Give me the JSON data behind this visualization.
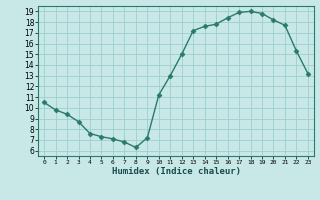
{
  "x": [
    0,
    1,
    2,
    3,
    4,
    5,
    6,
    7,
    8,
    9,
    10,
    11,
    12,
    13,
    14,
    15,
    16,
    17,
    18,
    19,
    20,
    21,
    22,
    23
  ],
  "y": [
    10.5,
    9.8,
    9.4,
    8.7,
    7.6,
    7.3,
    7.1,
    6.8,
    6.3,
    7.2,
    11.2,
    13.0,
    15.0,
    17.2,
    17.6,
    17.8,
    18.4,
    18.9,
    19.0,
    18.8,
    18.2,
    17.7,
    15.3,
    13.2
  ],
  "line_color": "#2a7a6a",
  "marker": "D",
  "marker_size": 2.5,
  "bg_color": "#c8e8e8",
  "grid_color": "#9ecece",
  "xlabel": "Humidex (Indice chaleur)",
  "xlim": [
    -0.5,
    23.5
  ],
  "ylim": [
    5.5,
    19.5
  ],
  "yticks": [
    6,
    7,
    8,
    9,
    10,
    11,
    12,
    13,
    14,
    15,
    16,
    17,
    18,
    19
  ],
  "xticks": [
    0,
    1,
    2,
    3,
    4,
    5,
    6,
    7,
    8,
    9,
    10,
    11,
    12,
    13,
    14,
    15,
    16,
    17,
    18,
    19,
    20,
    21,
    22,
    23
  ]
}
